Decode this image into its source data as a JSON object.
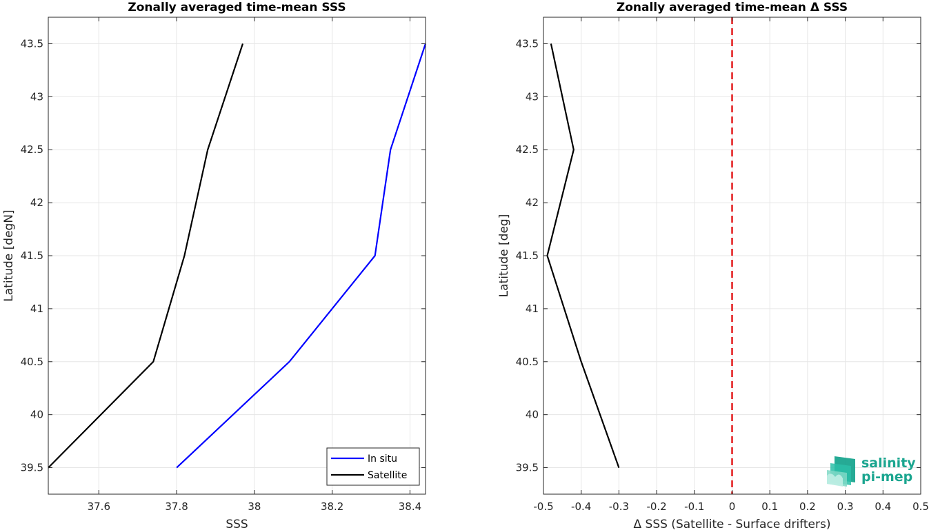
{
  "chart_data": [
    {
      "type": "line",
      "title": "Zonally averaged time-mean SSS",
      "xlabel": "SSS",
      "ylabel": "Latitude [degN]",
      "xlim": [
        37.47,
        38.44
      ],
      "ylim": [
        39.25,
        43.75
      ],
      "xticks": [
        37.6,
        37.8,
        38.0,
        38.2,
        38.4
      ],
      "xtick_labels": [
        "37.6",
        "37.8",
        "38",
        "38.2",
        "38.4"
      ],
      "yticks": [
        39.5,
        40,
        40.5,
        41,
        41.5,
        42,
        42.5,
        43,
        43.5
      ],
      "ytick_labels": [
        "39.5",
        "40",
        "40.5",
        "41",
        "41.5",
        "42",
        "42.5",
        "43",
        "43.5"
      ],
      "grid": true,
      "legend": "bottom-right",
      "series": [
        {
          "name": "In situ",
          "color": "#0000ff",
          "x": [
            37.8,
            38.09,
            38.31,
            38.35,
            38.44
          ],
          "y": [
            39.5,
            40.5,
            41.5,
            42.5,
            43.5
          ]
        },
        {
          "name": "Satellite",
          "color": "#000000",
          "x": [
            37.47,
            37.74,
            37.82,
            37.88,
            37.97
          ],
          "y": [
            39.5,
            40.5,
            41.5,
            42.5,
            43.5
          ]
        }
      ]
    },
    {
      "type": "line",
      "title": "Zonally averaged time-mean Δ SSS",
      "xlabel": "Δ SSS (Satellite - Surface drifters)",
      "ylabel": "Latitude [deg]",
      "xlim": [
        -0.5,
        0.5
      ],
      "ylim": [
        39.25,
        43.75
      ],
      "xticks": [
        -0.5,
        -0.4,
        -0.3,
        -0.2,
        -0.1,
        0,
        0.1,
        0.2,
        0.3,
        0.4,
        0.5
      ],
      "xtick_labels": [
        "-0.5",
        "-0.4",
        "-0.3",
        "-0.2",
        "-0.1",
        "0",
        "0.1",
        "0.2",
        "0.3",
        "0.4",
        "0.5"
      ],
      "yticks": [
        39.5,
        40,
        40.5,
        41,
        41.5,
        42,
        42.5,
        43,
        43.5
      ],
      "ytick_labels": [
        "39.5",
        "40",
        "40.5",
        "41",
        "41.5",
        "42",
        "42.5",
        "43",
        "43.5"
      ],
      "grid": true,
      "reference_line": {
        "x": 0,
        "color": "#e31a1c",
        "style": "dashed"
      },
      "series": [
        {
          "color": "#000000",
          "x": [
            -0.3,
            -0.4,
            -0.49,
            -0.42,
            -0.48
          ],
          "y": [
            39.5,
            40.5,
            41.5,
            42.5,
            43.5
          ]
        }
      ]
    }
  ],
  "logo": {
    "line1": "salinity",
    "line2": "pi-mep",
    "color": "#1aa58f"
  }
}
